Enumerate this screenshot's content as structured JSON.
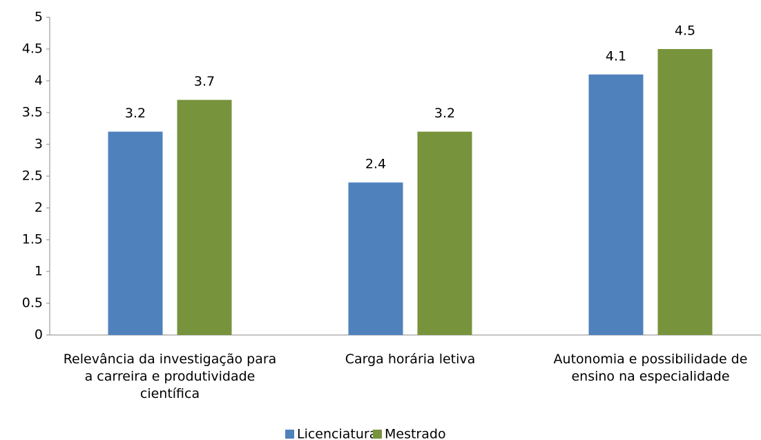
{
  "chart_data": {
    "type": "bar",
    "categories": [
      "Relevância da investigação para a carreira e produtividade científica",
      "Carga horária letiva",
      "Autonomia e possibilidade de ensino na especialidade"
    ],
    "series": [
      {
        "name": "Licenciatura",
        "color": "#4f81bd",
        "values": [
          3.2,
          2.4,
          4.1
        ]
      },
      {
        "name": "Mestrado",
        "color": "#77933c",
        "values": [
          3.7,
          3.2,
          4.5
        ]
      }
    ],
    "ylim": [
      0,
      5
    ],
    "yticks": [
      0,
      0.5,
      1,
      1.5,
      2,
      2.5,
      3,
      3.5,
      4,
      4.5,
      5
    ],
    "grid": false,
    "legend": "bottom"
  }
}
